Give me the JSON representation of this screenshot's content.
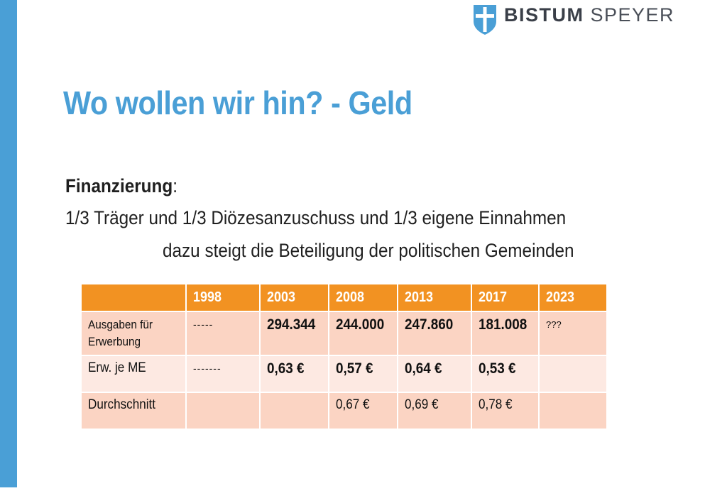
{
  "logo": {
    "word1": "BISTUM",
    "word2": "SPEYER",
    "shield_color": "#4a9fd6"
  },
  "title": "Wo wollen wir hin? - Geld",
  "financing": {
    "label": "Finanzierung",
    "colon": ":",
    "line1": "1/3 Träger und 1/3 Diözesanzuschuss und 1/3 eigene Einnahmen",
    "line2": "dazu steigt die Beteiligung der politischen Gemeinden"
  },
  "table": {
    "header": [
      "",
      "1998",
      "2003",
      "2008",
      "2013",
      "2017",
      "2023"
    ],
    "rows": [
      {
        "label": "Ausgaben für Erwerbung",
        "cells": [
          "-----",
          "294.344",
          "244.000",
          "247.860",
          "181.008",
          "???"
        ]
      },
      {
        "label": "Erw. je ME",
        "cells": [
          "-------",
          "0,63 €",
          "0,57 €",
          "0,64 €",
          "0,53 €",
          ""
        ]
      },
      {
        "label": "Durchschnitt",
        "cells": [
          "",
          "",
          "0,67 €",
          "0,69 €",
          "0,78 €",
          ""
        ]
      }
    ]
  },
  "colors": {
    "accent_blue": "#4a9fd6",
    "table_header": "#f29222",
    "row_dark": "#fbd4c3",
    "row_light": "#fde9e2"
  }
}
